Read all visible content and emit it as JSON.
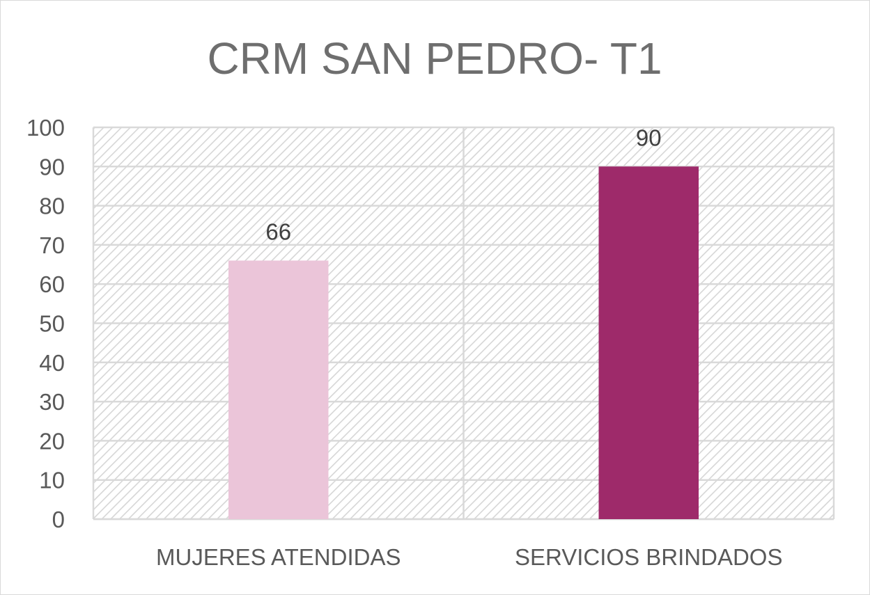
{
  "chart_data": {
    "type": "bar",
    "title": "CRM SAN PEDRO- T1",
    "categories": [
      "MUJERES ATENDIDAS",
      "SERVICIOS BRINDADOS"
    ],
    "values": [
      66,
      90
    ],
    "bar_colors": [
      "#ebc5d9",
      "#9e2a6a"
    ],
    "data_labels": [
      "66",
      "90"
    ],
    "ylim": [
      0,
      100
    ],
    "y_ticks": [
      "0",
      "10",
      "20",
      "30",
      "40",
      "50",
      "60",
      "70",
      "80",
      "90",
      "100"
    ],
    "xlabel": "",
    "ylabel": "",
    "grid": true,
    "plot_background": "diagonal-hatch",
    "legend": "none"
  }
}
